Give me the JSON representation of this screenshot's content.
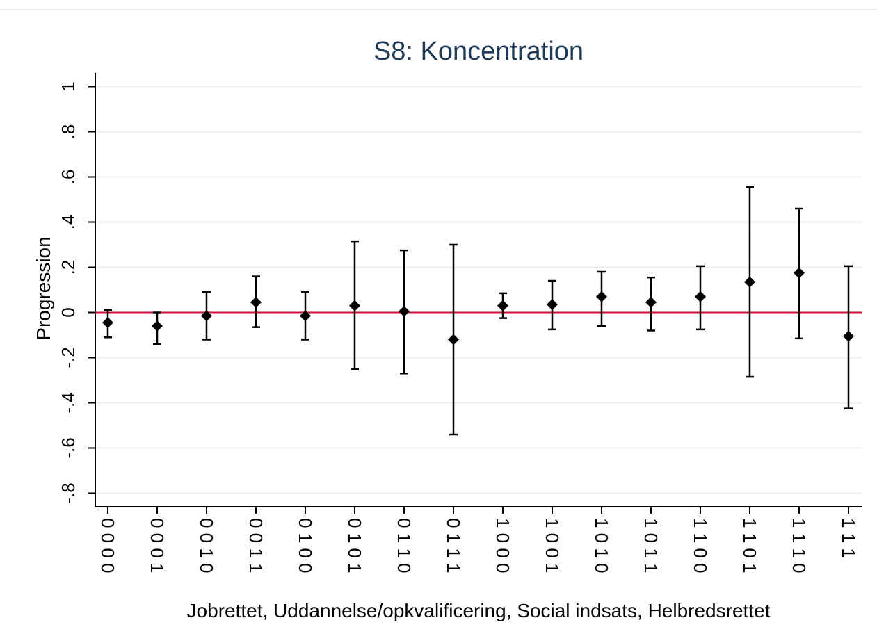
{
  "chart_data": {
    "type": "errorbar",
    "title": "S8: Koncentration",
    "x_label": "Jobrettet, Uddannelse/opkvalificering, Social indsats, Helbredsrettet",
    "y_label": "Progression",
    "categories": [
      "0 0 0 0",
      "0 0 0 1",
      "0 0 1 0",
      "0 0 1 1",
      "0 1 0 0",
      "0 1 0 1",
      "0 1 1 0",
      "0 1 1 1",
      "1 0 0 0",
      "1 0 0 1",
      "1 0 1 0",
      "1 0 1 1",
      "1 1 0 0",
      "1 1 0 1",
      "1 1 1 0",
      "1 1 1"
    ],
    "values": [
      -0.045,
      -0.06,
      -0.015,
      0.045,
      -0.015,
      0.03,
      0.005,
      -0.12,
      0.03,
      0.035,
      0.07,
      0.045,
      0.07,
      0.135,
      0.175,
      -0.105
    ],
    "lower": [
      -0.11,
      -0.14,
      -0.12,
      -0.065,
      -0.12,
      -0.25,
      -0.27,
      -0.54,
      -0.025,
      -0.075,
      -0.06,
      -0.08,
      -0.075,
      -0.285,
      -0.115,
      -0.425
    ],
    "upper": [
      0.01,
      0.0,
      0.09,
      0.16,
      0.09,
      0.315,
      0.275,
      0.3,
      0.085,
      0.14,
      0.18,
      0.155,
      0.205,
      0.555,
      0.46,
      0.205
    ],
    "color": "#000000",
    "reference_line": 0,
    "reference_color": "#c8103c",
    "ylim": [
      -0.86,
      1.06
    ],
    "yticks": [
      {
        "value": 1,
        "label": "1"
      },
      {
        "value": 0.8,
        "label": ".8"
      },
      {
        "value": 0.6,
        "label": ".6"
      },
      {
        "value": 0.4,
        "label": ".4"
      },
      {
        "value": 0.2,
        "label": ".2"
      },
      {
        "value": 0,
        "label": "0"
      },
      {
        "value": -0.2,
        "label": "-.2"
      },
      {
        "value": -0.4,
        "label": "-.4"
      },
      {
        "value": -0.6,
        "label": "-.6"
      },
      {
        "value": -0.8,
        "label": "-.8"
      }
    ],
    "grid": true
  }
}
